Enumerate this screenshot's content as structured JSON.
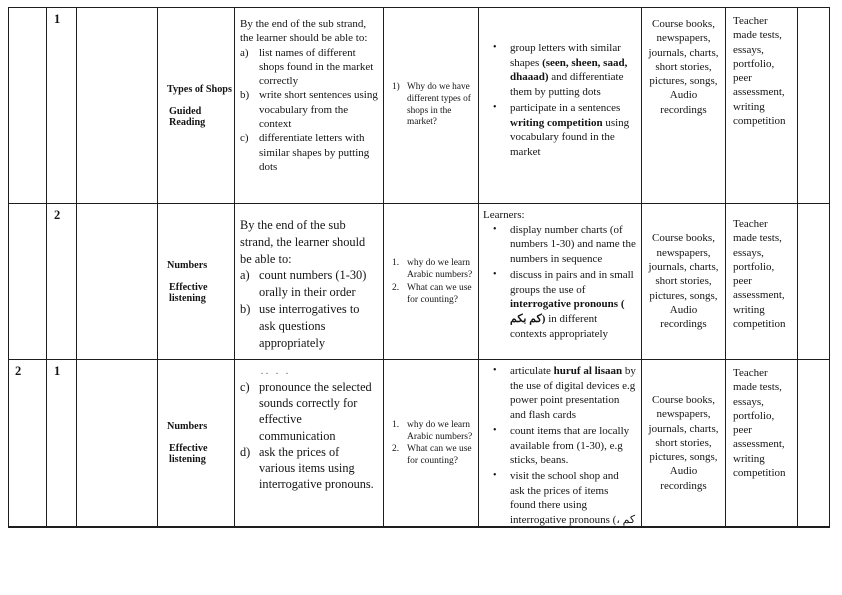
{
  "glyphs": {
    "bullet": "•"
  },
  "table": {
    "rows": [
      {
        "week": "",
        "lesson": "1",
        "strand_lines": [
          "Types of Shops",
          "Guided Reading"
        ],
        "objectives": {
          "intro": "By the end of the sub strand, the learner should be able to:",
          "items": [
            {
              "m": "a)",
              "runs": [
                {
                  "t": "list names of different shops found in the market correctly"
                }
              ]
            },
            {
              "m": "b)",
              "runs": [
                {
                  "t": "write short sentences using vocabulary from the context"
                }
              ]
            },
            {
              "m": "c)",
              "runs": [
                {
                  "t": "differentiate letters with similar shapes by putting dots"
                }
              ]
            }
          ]
        },
        "inquiry": {
          "items": [
            {
              "m": "1)",
              "runs": [
                {
                  "t": "Why do we have different types of shops in the market?"
                }
              ]
            }
          ]
        },
        "experiences": {
          "intro": "",
          "bullets": [
            {
              "runs": [
                {
                  "t": "group letters with similar shapes "
                },
                {
                  "t": "(seen, sheen, saad, dhaaad)",
                  "b": 1
                },
                {
                  "t": " and differentiate them by putting dots"
                }
              ]
            },
            {
              "runs": [
                {
                  "t": "participate in a sentences "
                },
                {
                  "t": "writing competition",
                  "b": 1
                },
                {
                  "t": " using vocabulary found in the market"
                }
              ]
            }
          ]
        },
        "resources": "Course books, newspapers, journals, charts, short stories, pictures, songs, Audio recordings",
        "assessment": "Teacher made tests, essays, portfolio, peer assessment, writing competition"
      },
      {
        "week": "",
        "lesson": "2",
        "strand_lines": [
          "Numbers",
          "Effective listening"
        ],
        "objectives": {
          "intro": "By the end of the sub strand, the learner should be able to:",
          "items": [
            {
              "m": "a)",
              "runs": [
                {
                  "t": "count numbers (1-30) orally in their order"
                }
              ]
            },
            {
              "m": "b)",
              "runs": [
                {
                  "t": "use interrogatives to ask questions appropriately"
                }
              ]
            }
          ]
        },
        "inquiry": {
          "items": [
            {
              "m": "1.",
              "runs": [
                {
                  "t": "why do we learn Arabic numbers?"
                }
              ]
            },
            {
              "m": "2.",
              "runs": [
                {
                  "t": "What can we use for counting?"
                }
              ]
            }
          ]
        },
        "experiences": {
          "intro": "Learners:",
          "bullets": [
            {
              "runs": [
                {
                  "t": "display number charts (of numbers 1-30) and name the numbers in sequence"
                }
              ]
            },
            {
              "runs": [
                {
                  "t": "discuss in pairs and in small groups the use of "
                },
                {
                  "t": "interrogative pronouns ( كم بكم)",
                  "b": 1
                },
                {
                  "t": " in different contexts appropriately"
                }
              ]
            }
          ]
        },
        "resources": "Course books, newspapers, journals, charts, short stories, pictures, songs, Audio recordings",
        "assessment": "Teacher made tests, essays, portfolio, peer assessment, writing competition"
      },
      {
        "week": "2",
        "lesson": "1",
        "strand_lines": [
          "Numbers",
          "Effective listening"
        ],
        "objectives": {
          "remnant": ".. . .",
          "intro": "",
          "items": [
            {
              "m": "c)",
              "runs": [
                {
                  "t": "pronounce the selected sounds correctly for effective communication"
                }
              ]
            },
            {
              "m": "d)",
              "runs": [
                {
                  "t": "ask the prices of various items using interrogative pronouns."
                }
              ]
            }
          ]
        },
        "inquiry": {
          "items": [
            {
              "m": "1.",
              "runs": [
                {
                  "t": "why do we learn Arabic numbers?"
                }
              ]
            },
            {
              "m": "2.",
              "runs": [
                {
                  "t": "What can we use for counting?"
                }
              ]
            }
          ]
        },
        "experiences": {
          "intro": "",
          "bullets": [
            {
              "runs": [
                {
                  "t": "articulate "
                },
                {
                  "t": "huruf al lisaan",
                  "b": 1
                },
                {
                  "t": " by the use of digital devices e.g power point presentation and flash cards"
                }
              ]
            },
            {
              "runs": [
                {
                  "t": "count items that are locally available from (1-30),  e.g sticks, beans."
                }
              ]
            },
            {
              "runs": [
                {
                  "t": "visit the school shop and ask the prices of items found there using interrogative pronouns (كم ، بكم)"
                }
              ]
            }
          ]
        },
        "resources": "Course books, newspapers, journals, charts, short stories, pictures, songs, Audio recordings",
        "assessment": "Teacher made tests, essays, portfolio, peer assessment, writing competition"
      }
    ]
  }
}
